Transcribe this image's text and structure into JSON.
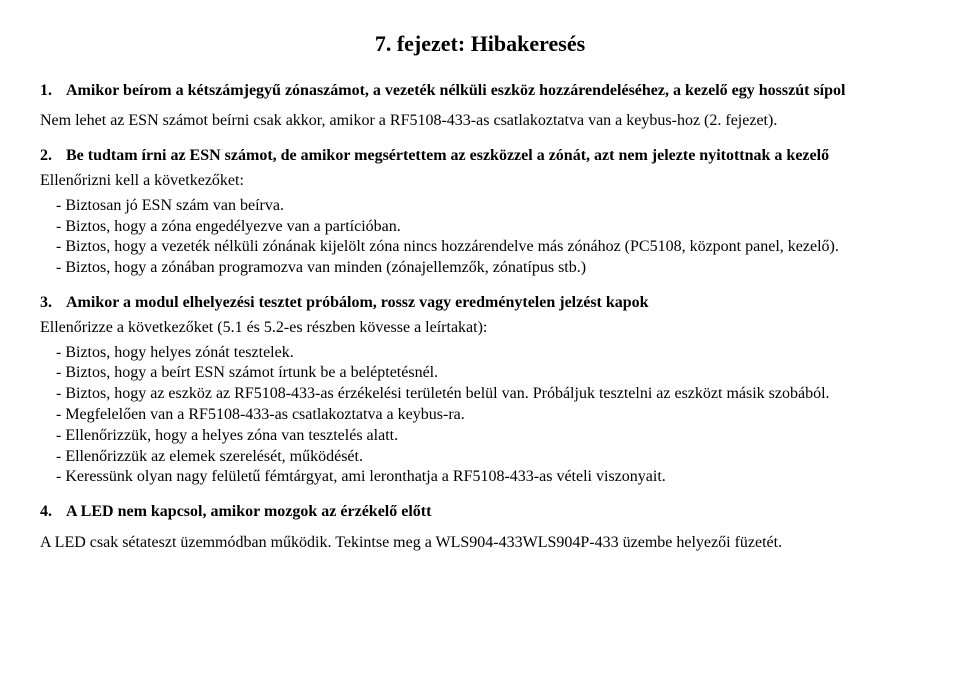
{
  "title": "7. fejezet: Hibakeresés",
  "s1": {
    "num": "1.",
    "heading": "Amikor beírom a kétszámjegyű zónaszámot, a vezeték nélküli eszköz hozzárendeléséhez, a kezelő egy hosszút sípol",
    "para": "Nem lehet az ESN számot beírni csak akkor, amikor a RF5108-433-as csatlakoztatva van a keybus-hoz (2. fejezet)."
  },
  "s2": {
    "num": "2.",
    "heading": "Be tudtam írni az ESN számot, de amikor megsértettem az eszközzel a zónát, azt nem jelezte nyitottnak a kezelő",
    "intro": "Ellenőrizni kell a következőket:",
    "items": [
      "Biztosan jó ESN szám van beírva.",
      "Biztos, hogy a zóna engedélyezve van a partícióban.",
      "Biztos, hogy a vezeték nélküli zónának kijelölt zóna nincs hozzárendelve más zónához (PC5108, központ panel, kezelő).",
      "Biztos, hogy a zónában programozva van minden (zónajellemzők, zónatípus stb.)"
    ]
  },
  "s3": {
    "num": "3.",
    "heading": "Amikor a modul elhelyezési tesztet próbálom, rossz vagy eredménytelen jelzést kapok",
    "intro": "Ellenőrizze a következőket (5.1 és 5.2-es részben kövesse a leírtakat):",
    "items": [
      "Biztos, hogy helyes zónát tesztelek.",
      "Biztos, hogy a beírt ESN számot írtunk be a beléptetésnél.",
      "Biztos, hogy az eszköz az RF5108-433-as érzékelési területén belül van. Próbáljuk tesztelni az eszközt másik szobából.",
      "Megfelelően van a RF5108-433-as csatlakoztatva a keybus-ra.",
      "Ellenőrizzük, hogy a helyes zóna van tesztelés alatt.",
      "Ellenőrizzük az elemek szerelését, működését.",
      "Keressünk olyan nagy felületű fémtárgyat, ami leronthatja a RF5108-433-as vételi viszonyait."
    ]
  },
  "s4": {
    "num": "4.",
    "heading": "A LED nem kapcsol, amikor mozgok az érzékelő előtt",
    "para": "A LED csak sétateszt üzemmódban működik. Tekintse meg a WLS904-433WLS904P-433 üzembe helyezői füzetét."
  }
}
